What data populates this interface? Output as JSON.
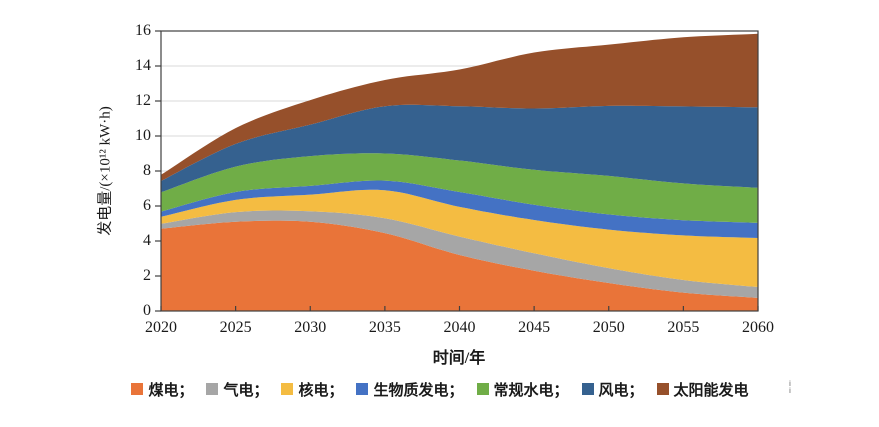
{
  "figure": {
    "background": "#FFFFFF",
    "artifact_mark": "ⅰ\nⅰ"
  },
  "chart_data": {
    "type": "area",
    "stacked": true,
    "title": "",
    "xlabel": "时间/年",
    "ylabel": "发电量/(×10¹² kW·h)",
    "x": [
      2020,
      2025,
      2030,
      2035,
      2040,
      2045,
      2050,
      2055,
      2060
    ],
    "x_tick_labels": [
      "2020",
      "2025",
      "2030",
      "2035",
      "2040",
      "2045",
      "2050",
      "2055",
      "2060"
    ],
    "y_ticks": [
      0,
      2,
      4,
      6,
      8,
      10,
      12,
      14,
      16
    ],
    "y_tick_labels": [
      "0",
      "2",
      "4",
      "6",
      "8",
      "10",
      "12",
      "14",
      "16"
    ],
    "xlim": [
      2020,
      2060
    ],
    "ylim": [
      0,
      16
    ],
    "grid": "horizontal, every 2 units, light gray",
    "legend_position": "bottom-center single row",
    "series": [
      {
        "key": "coal",
        "name": "煤电",
        "legend_label": "煤电；",
        "color": "#E97439",
        "values": [
          4.7,
          5.1,
          5.1,
          4.45,
          3.2,
          2.3,
          1.6,
          1.05,
          0.75
        ]
      },
      {
        "key": "gas",
        "name": "气电",
        "legend_label": "气电；",
        "color": "#A6A6A6",
        "values": [
          0.28,
          0.55,
          0.6,
          0.85,
          1.05,
          1.0,
          0.85,
          0.72,
          0.62
        ]
      },
      {
        "key": "nuclear",
        "name": "核电",
        "legend_label": "核电；",
        "color": "#F4BC42",
        "values": [
          0.4,
          0.7,
          0.95,
          1.6,
          1.7,
          1.9,
          2.2,
          2.55,
          2.8
        ]
      },
      {
        "key": "biomass",
        "name": "生物质发电",
        "legend_label": "生物质发电；",
        "color": "#4472C4",
        "values": [
          0.3,
          0.45,
          0.5,
          0.55,
          0.85,
          0.87,
          0.87,
          0.87,
          0.87
        ]
      },
      {
        "key": "hydro",
        "name": "常规水电",
        "legend_label": "常规水电；",
        "color": "#70AD47",
        "values": [
          1.1,
          1.45,
          1.7,
          1.55,
          1.8,
          2.0,
          2.2,
          2.1,
          2.0
        ]
      },
      {
        "key": "wind",
        "name": "风电",
        "legend_label": "风电；",
        "color": "#35618F",
        "values": [
          0.65,
          1.3,
          1.8,
          2.7,
          3.1,
          3.5,
          4.0,
          4.4,
          4.6
        ]
      },
      {
        "key": "solar",
        "name": "太阳能发电",
        "legend_label": "太阳能发电",
        "color": "#96502B",
        "values": [
          0.35,
          0.9,
          1.4,
          1.5,
          2.1,
          3.2,
          3.5,
          3.95,
          4.2
        ]
      }
    ],
    "totals": [
      7.78,
      10.45,
      12.05,
      13.2,
      13.8,
      14.77,
      15.22,
      15.64,
      15.84
    ],
    "colors": {
      "grid": "#D9D9D9",
      "axis": "#3F3F3F",
      "text": "#1A1A1A"
    }
  }
}
